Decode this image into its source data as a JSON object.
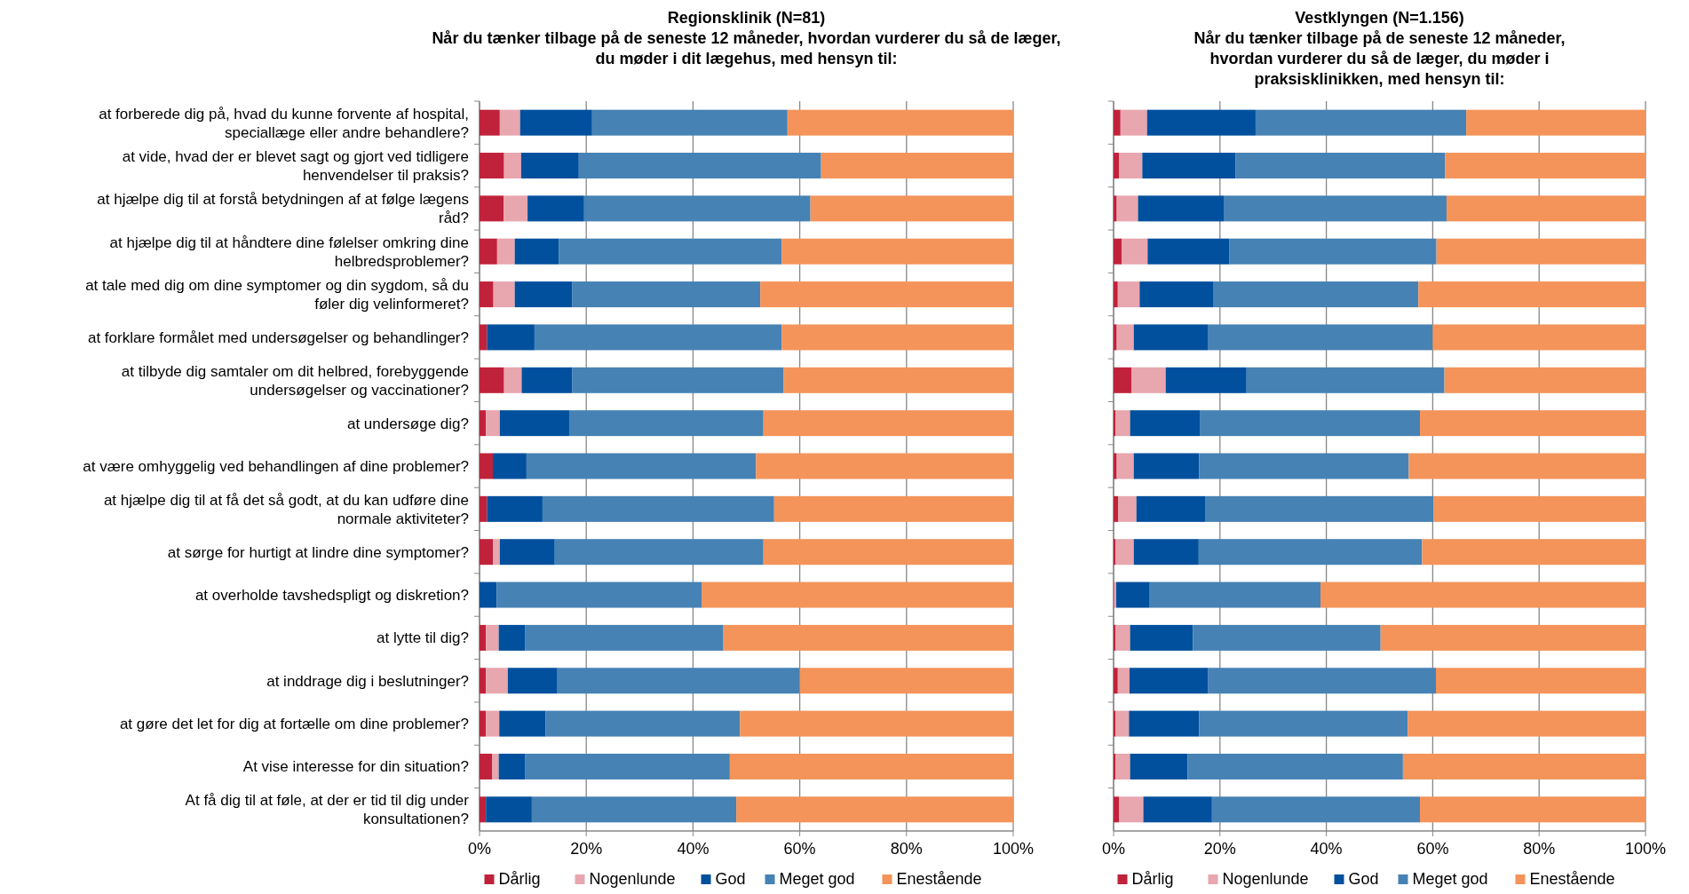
{
  "chart_data": [
    {
      "type": "bar",
      "orientation": "horizontal",
      "stacked": true,
      "title": "Regionsklinik (N=81)",
      "subtitle": "Når du tænker tilbage på de seneste 12 måneder, hvordan vurderer du så de læger, du møder i dit lægehus, med hensyn til:",
      "categories": [
        "at forberede dig på, hvad du kunne forvente af hospital, speciallæge eller andre behandlere?",
        "at vide, hvad der er blevet sagt og gjort ved tidligere henvendelser til praksis?",
        "at hjælpe dig til at forstå betydningen af at følge lægens råd?",
        "at hjælpe dig til at håndtere dine følelser omkring dine helbredsproblemer?",
        "at tale med dig om dine symptomer og din sygdom, så du føler dig velinformeret?",
        "at forklare formålet med undersøgelser og behandlinger?",
        "at tilbyde dig samtaler om dit helbred, forebyggende undersøgelser og vaccinationer?",
        "at undersøge dig?",
        "at være omhyggelig ved behandlingen af dine problemer?",
        "at hjælpe dig til at få det så godt, at du kan udføre dine normale aktiviteter?",
        "at sørge for hurtigt at lindre dine symptomer?",
        "at overholde tavshedspligt og diskretion?",
        "at lytte til dig?",
        "at inddrage dig i beslutninger?",
        "at gøre det let for dig at fortælle om dine problemer?",
        "At vise interesse for din situation?",
        "At få dig til at føle, at der er tid til dig under konsultationen?"
      ],
      "series": [
        {
          "name": "Dårlig",
          "color": "#c0223b",
          "values": [
            3.8,
            4.6,
            4.5,
            3.3,
            2.6,
            1.4,
            4.6,
            1.2,
            2.5,
            1.4,
            2.5,
            0,
            1.2,
            1.2,
            1.2,
            2.4,
            1.2
          ]
        },
        {
          "name": "Nogenlunde",
          "color": "#e8a6ae",
          "values": [
            3.8,
            3.2,
            4.5,
            3.3,
            4.0,
            0,
            3.3,
            2.6,
            0,
            0,
            1.3,
            0,
            2.4,
            4.1,
            2.5,
            1.2,
            0
          ]
        },
        {
          "name": "God",
          "color": "#00509e",
          "values": [
            13.5,
            10.8,
            10.6,
            8.3,
            10.8,
            8.9,
            9.5,
            13.0,
            6.3,
            10.4,
            10.3,
            3.2,
            4.9,
            9.3,
            8.7,
            4.9,
            8.6
          ]
        },
        {
          "name": "Meget god",
          "color": "#4682b4",
          "values": [
            36.6,
            45.4,
            42.4,
            41.7,
            35.2,
            46.3,
            39.6,
            36.4,
            43.0,
            43.4,
            39.1,
            38.4,
            37.2,
            45.4,
            36.4,
            38.4,
            38.3
          ]
        },
        {
          "name": "Enestående",
          "color": "#f4945a",
          "values": [
            42.3,
            36.0,
            38.0,
            43.4,
            47.4,
            43.4,
            43.0,
            46.8,
            48.2,
            44.8,
            46.8,
            58.4,
            54.3,
            40.0,
            51.2,
            53.1,
            51.9
          ]
        }
      ],
      "xlim": [
        0,
        100
      ],
      "xticks": [
        {
          "value": 0,
          "label": "0%"
        },
        {
          "value": 20,
          "label": "20%"
        },
        {
          "value": 40,
          "label": "40%"
        },
        {
          "value": 60,
          "label": "60%"
        },
        {
          "value": 80,
          "label": "80%"
        },
        {
          "value": 100,
          "label": "100%"
        }
      ],
      "grid": "x",
      "legend": "bottom"
    },
    {
      "type": "bar",
      "orientation": "horizontal",
      "stacked": true,
      "title": "Vestklyngen (N=1.156)",
      "subtitle": "Når du tænker tilbage på de seneste 12 måneder, hvordan vurderer du så de læger, du møder i praksisklinikken, med hensyn til:",
      "categories": [
        null,
        null,
        null,
        null,
        null,
        null,
        null,
        null,
        null,
        null,
        null,
        null,
        null,
        null,
        null,
        null,
        null
      ],
      "series": [
        {
          "name": "Dårlig",
          "color": "#c0223b",
          "values": [
            1.3,
            1.0,
            0.6,
            1.5,
            0.8,
            0.6,
            3.4,
            0.4,
            0.6,
            0.9,
            0.4,
            0.1,
            0.4,
            0.8,
            0.4,
            0.4,
            1.0
          ]
        },
        {
          "name": "Nogenlunde",
          "color": "#e8a6ae",
          "values": [
            5.0,
            4.4,
            4.0,
            4.9,
            4.1,
            3.2,
            6.4,
            2.7,
            3.2,
            3.4,
            3.4,
            0.4,
            2.7,
            2.2,
            2.5,
            2.7,
            4.6
          ]
        },
        {
          "name": "God",
          "color": "#00509e",
          "values": [
            20.4,
            17.5,
            16.1,
            15.4,
            13.8,
            13.9,
            15.2,
            13.1,
            12.3,
            12.9,
            12.2,
            6.3,
            11.8,
            14.8,
            13.2,
            10.8,
            12.9
          ]
        },
        {
          "name": "Meget god",
          "color": "#4682b4",
          "values": [
            39.6,
            39.4,
            41.9,
            38.9,
            38.6,
            42.3,
            37.2,
            41.4,
            39.4,
            42.9,
            42.0,
            32.1,
            35.3,
            42.8,
            39.2,
            40.5,
            39.1
          ]
        },
        {
          "name": "Enestående",
          "color": "#f4945a",
          "values": [
            33.7,
            37.7,
            37.4,
            39.3,
            42.7,
            40.0,
            37.8,
            42.4,
            44.5,
            39.9,
            42.0,
            61.1,
            49.8,
            39.4,
            44.7,
            45.6,
            42.4
          ]
        }
      ],
      "xlim": [
        0,
        100
      ],
      "xticks": [
        {
          "value": 0,
          "label": "0%"
        },
        {
          "value": 20,
          "label": "20%"
        },
        {
          "value": 40,
          "label": "40%"
        },
        {
          "value": 60,
          "label": "60%"
        },
        {
          "value": 80,
          "label": "80%"
        },
        {
          "value": 100,
          "label": "100%"
        }
      ],
      "grid": "x",
      "legend": "bottom"
    }
  ]
}
